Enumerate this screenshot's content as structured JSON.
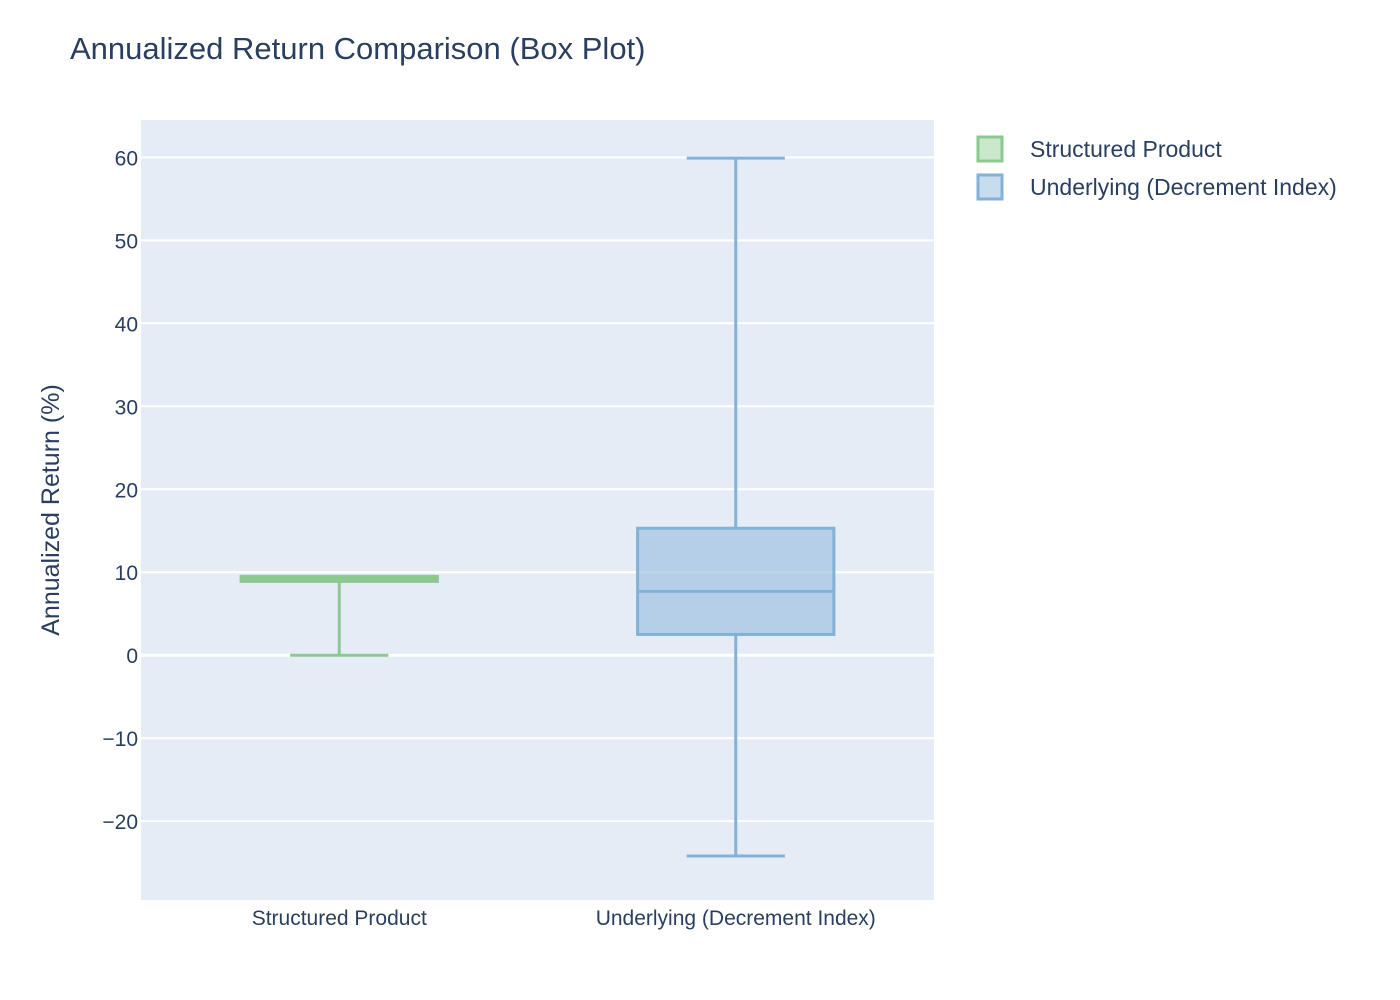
{
  "chart_data": {
    "type": "box",
    "title": "Annualized Return Comparison (Box Plot)",
    "xlabel": "",
    "ylabel": "Annualized Return (%)",
    "ylim": [
      -29.5,
      64.5
    ],
    "yticks": [
      60,
      50,
      40,
      30,
      20,
      10,
      0,
      -10,
      -20
    ],
    "ytick_labels": [
      "60",
      "50",
      "40",
      "30",
      "20",
      "10",
      "0",
      "−10",
      "−20"
    ],
    "grid": true,
    "legend_position": "top-right",
    "categories": [
      "Structured Product",
      "Underlying (Decrement Index)"
    ],
    "series": [
      {
        "name": "Structured Product",
        "category": "Structured Product",
        "min": 0,
        "q1": 9.2,
        "median": 9.2,
        "q3": 9.2,
        "max": 9.2,
        "color": "#8bc98f"
      },
      {
        "name": "Underlying (Decrement Index)",
        "category": "Underlying (Decrement Index)",
        "min": -24.2,
        "q1": 2.5,
        "median": 7.7,
        "q3": 15.3,
        "max": 59.9,
        "color": "#83b2d8"
      }
    ]
  }
}
